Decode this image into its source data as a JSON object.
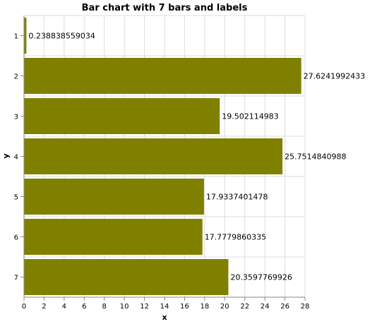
{
  "chart_data": {
    "type": "bar",
    "orientation": "horizontal",
    "title": "Bar chart with 7 bars and labels",
    "xlabel": "x",
    "ylabel": "y",
    "categories": [
      "1",
      "2",
      "3",
      "4",
      "5",
      "6",
      "7"
    ],
    "values": [
      0.238838559034,
      27.6241992433,
      19.502114983,
      25.7514840988,
      17.9337401478,
      17.7779860335,
      20.3597769926
    ],
    "data_labels": [
      "0.238838559034",
      "27.6241992433",
      "19.502114983",
      "25.7514840988",
      "17.9337401478",
      "17.7779860335",
      "20.3597769926"
    ],
    "xlim": [
      0,
      28
    ],
    "x_ticks": [
      0,
      2,
      4,
      6,
      8,
      10,
      12,
      14,
      16,
      18,
      20,
      22,
      24,
      26,
      28
    ],
    "grid": true,
    "legend": "none",
    "bar_color": "#808000",
    "grid_color": "#dddddd",
    "axis_color": "#888888"
  }
}
